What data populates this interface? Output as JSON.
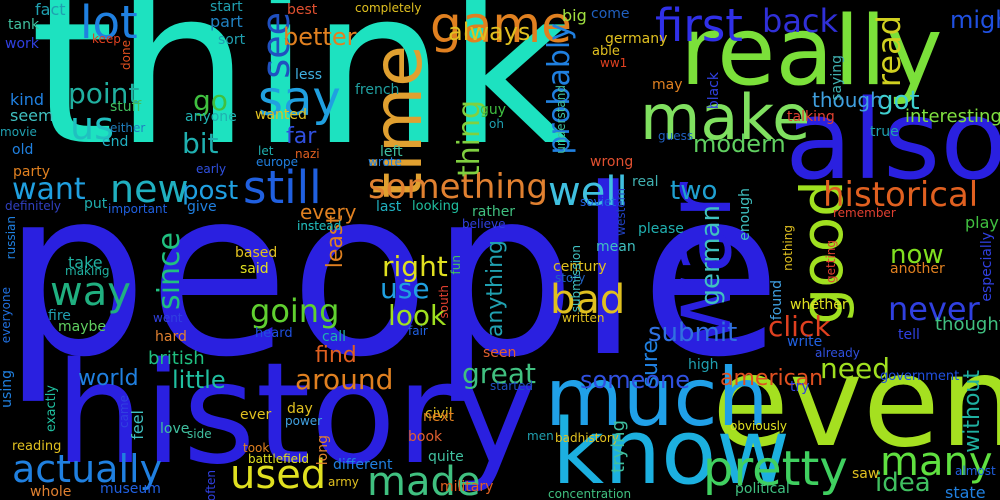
{
  "background": "#000000",
  "words": [
    {
      "text": "people",
      "color": "#2a20e0"
    },
    {
      "text": "think",
      "color": "#1de2c0"
    },
    {
      "text": "history",
      "color": "#2a20e0"
    },
    {
      "text": "really",
      "color": "#7be03a"
    },
    {
      "text": "also",
      "color": "#2a20e0"
    },
    {
      "text": "even",
      "color": "#a5e020"
    },
    {
      "text": "know",
      "color": "#1cb0e0"
    },
    {
      "text": "much",
      "color": "#20a0e8"
    },
    {
      "text": "war",
      "color": "#2a20e0"
    },
    {
      "text": "time",
      "color": "#e0a030"
    },
    {
      "text": "make",
      "color": "#80e060"
    },
    {
      "text": "game",
      "color": "#e08020"
    },
    {
      "text": "first",
      "color": "#3030e8"
    },
    {
      "text": "back",
      "color": "#3030d8"
    },
    {
      "text": "lot",
      "color": "#2080e0"
    },
    {
      "text": "us",
      "color": "#20c0c0"
    },
    {
      "text": "say",
      "color": "#20a0e0"
    },
    {
      "text": "see",
      "color": "#2050c0"
    },
    {
      "text": "still",
      "color": "#2060e0"
    },
    {
      "text": "new",
      "color": "#20b0c0"
    },
    {
      "text": "well",
      "color": "#40c0e0"
    },
    {
      "text": "good",
      "color": "#a0e020"
    },
    {
      "text": "pretty",
      "color": "#40d060"
    },
    {
      "text": "actually",
      "color": "#2080e0"
    },
    {
      "text": "used",
      "color": "#e0e020"
    },
    {
      "text": "made",
      "color": "#40c080"
    },
    {
      "text": "many",
      "color": "#60e040"
    },
    {
      "text": "way",
      "color": "#20b080"
    },
    {
      "text": "want",
      "color": "#20a0e0"
    },
    {
      "text": "something",
      "color": "#e08030"
    },
    {
      "text": "historical",
      "color": "#e06020"
    },
    {
      "text": "bad",
      "color": "#e0c020"
    },
    {
      "text": "going",
      "color": "#60d030"
    },
    {
      "text": "never",
      "color": "#3040e0"
    },
    {
      "text": "click",
      "color": "#e04020"
    },
    {
      "text": "around",
      "color": "#e08020"
    },
    {
      "text": "submit",
      "color": "#3070e0"
    },
    {
      "text": "little",
      "color": "#20c0a0"
    },
    {
      "text": "world",
      "color": "#2080e0"
    },
    {
      "text": "great",
      "color": "#40c080"
    },
    {
      "text": "someone",
      "color": "#3050e0"
    },
    {
      "text": "american",
      "color": "#e05020"
    },
    {
      "text": "need",
      "color": "#a0e020"
    },
    {
      "text": "idea",
      "color": "#40c060"
    },
    {
      "text": "point",
      "color": "#20b0a0"
    },
    {
      "text": "go",
      "color": "#40c040"
    },
    {
      "text": "bit",
      "color": "#20b0b0"
    },
    {
      "text": "post",
      "color": "#20a0e0"
    },
    {
      "text": "two",
      "color": "#20a0d0"
    },
    {
      "text": "got",
      "color": "#40d0d0"
    },
    {
      "text": "read",
      "color": "#d0d020"
    },
    {
      "text": "might",
      "color": "#2050e0"
    },
    {
      "text": "probably",
      "color": "#2080e0"
    },
    {
      "text": "thing",
      "color": "#80d040"
    },
    {
      "text": "better",
      "color": "#e08020"
    },
    {
      "text": "always",
      "color": "#e0c020"
    },
    {
      "text": "modern",
      "color": "#60d060"
    },
    {
      "text": "german",
      "color": "#40c0c0"
    },
    {
      "text": "since",
      "color": "#20c080"
    },
    {
      "text": "right",
      "color": "#e0e020"
    },
    {
      "text": "use",
      "color": "#20a0e0"
    },
    {
      "text": "look",
      "color": "#a0e020"
    },
    {
      "text": "least",
      "color": "#e08020"
    },
    {
      "text": "every",
      "color": "#e08020"
    },
    {
      "text": "find",
      "color": "#e06020"
    },
    {
      "text": "anything",
      "color": "#20a0b0"
    },
    {
      "text": "now",
      "color": "#80e020"
    },
    {
      "text": "though",
      "color": "#40a0e0"
    },
    {
      "text": "interesting",
      "color": "#80e040"
    },
    {
      "text": "far",
      "color": "#3050e0"
    },
    {
      "text": "thought",
      "color": "#40c080"
    },
    {
      "text": "without",
      "color": "#20b0a0"
    },
    {
      "text": "sure",
      "color": "#2080e0"
    },
    {
      "text": "british",
      "color": "#20c080"
    },
    {
      "text": "fact",
      "color": "#20a0b0"
    },
    {
      "text": "part",
      "color": "#2080c0"
    },
    {
      "text": "start",
      "color": "#20a0b0"
    },
    {
      "text": "best",
      "color": "#e05030"
    },
    {
      "text": "big",
      "color": "#a0e040"
    },
    {
      "text": "come",
      "color": "#2060c0"
    },
    {
      "text": "tank",
      "color": "#40c0a0"
    },
    {
      "text": "work",
      "color": "#3040e0"
    },
    {
      "text": "kind",
      "color": "#2080e0"
    },
    {
      "text": "seem",
      "color": "#40c0c0"
    },
    {
      "text": "movie",
      "color": "#20a0b0"
    },
    {
      "text": "old",
      "color": "#2080e0"
    },
    {
      "text": "party",
      "color": "#e08020"
    },
    {
      "text": "definitely",
      "color": "#3040c0"
    },
    {
      "text": "russian",
      "color": "#2080e0"
    },
    {
      "text": "everyone",
      "color": "#2070e0"
    },
    {
      "text": "using",
      "color": "#2080e0"
    },
    {
      "text": "reading",
      "color": "#e0c020"
    },
    {
      "text": "whole",
      "color": "#e08030"
    },
    {
      "text": "museum",
      "color": "#2060e0"
    },
    {
      "text": "exactly",
      "color": "#20c0a0"
    },
    {
      "text": "fire",
      "color": "#20a0b0"
    },
    {
      "text": "maybe",
      "color": "#60d060"
    },
    {
      "text": "making",
      "color": "#20b0a0"
    },
    {
      "text": "take",
      "color": "#20b0a0"
    },
    {
      "text": "keep",
      "color": "#e04020"
    },
    {
      "text": "done",
      "color": "#e05020"
    },
    {
      "text": "completely",
      "color": "#e0c020"
    },
    {
      "text": "sort",
      "color": "#20a0b0"
    },
    {
      "text": "less",
      "color": "#40b0e0"
    },
    {
      "text": "germany",
      "color": "#e0c020"
    },
    {
      "text": "able",
      "color": "#e0c020"
    },
    {
      "text": "ww1",
      "color": "#e04020"
    },
    {
      "text": "may",
      "color": "#e08020"
    },
    {
      "text": "black",
      "color": "#3040e0"
    },
    {
      "text": "saying",
      "color": "#40b0b0"
    },
    {
      "text": "guy",
      "color": "#40c040"
    },
    {
      "text": "oh",
      "color": "#20a0b0"
    },
    {
      "text": "french",
      "color": "#20a0a0"
    },
    {
      "text": "understand",
      "color": "#40c0a0"
    },
    {
      "text": "stuff",
      "color": "#40c060"
    },
    {
      "text": "either",
      "color": "#2080c0"
    },
    {
      "text": "end",
      "color": "#20b0c0"
    },
    {
      "text": "anyone",
      "color": "#20b0b0"
    },
    {
      "text": "wanted",
      "color": "#e0c020"
    },
    {
      "text": "nazi",
      "color": "#e06020"
    },
    {
      "text": "let",
      "color": "#20b0b0"
    },
    {
      "text": "europe",
      "color": "#2080e0"
    },
    {
      "text": "left",
      "color": "#40c0a0"
    },
    {
      "text": "wrote",
      "color": "#2080e0"
    },
    {
      "text": "wrong",
      "color": "#e05030"
    },
    {
      "text": "talking",
      "color": "#e04030"
    },
    {
      "text": "true",
      "color": "#20a0b0"
    },
    {
      "text": "guess",
      "color": "#2060c0"
    },
    {
      "text": "early",
      "color": "#3050e0"
    },
    {
      "text": "real",
      "color": "#40b0b0"
    },
    {
      "text": "soviet",
      "color": "#2060e0"
    },
    {
      "text": "western",
      "color": "#2040c0"
    },
    {
      "text": "enough",
      "color": "#40c0c0"
    },
    {
      "text": "remember",
      "color": "#e04030"
    },
    {
      "text": "put",
      "color": "#20b0b0"
    },
    {
      "text": "important",
      "color": "#2060e0"
    },
    {
      "text": "give",
      "color": "#2080e0"
    },
    {
      "text": "instead",
      "color": "#20b0b0"
    },
    {
      "text": "last",
      "color": "#20b0c0"
    },
    {
      "text": "looking",
      "color": "#20c0a0"
    },
    {
      "text": "rather",
      "color": "#40c080"
    },
    {
      "text": "believe",
      "color": "#3040e0"
    },
    {
      "text": "please",
      "color": "#20b0b0"
    },
    {
      "text": "nothing",
      "color": "#e0c020"
    },
    {
      "text": "getting",
      "color": "#e04030"
    },
    {
      "text": "play",
      "color": "#40c040"
    },
    {
      "text": "especially",
      "color": "#3040e0"
    },
    {
      "text": "another",
      "color": "#e08020"
    },
    {
      "text": "based",
      "color": "#e0c020"
    },
    {
      "text": "said",
      "color": "#e0e020"
    },
    {
      "text": "instead_2",
      "color": "#20b0b0"
    },
    {
      "text": "mean",
      "color": "#40c0c0"
    },
    {
      "text": "century",
      "color": "#e0c020"
    },
    {
      "text": "story",
      "color": "#2060c0"
    },
    {
      "text": "submission",
      "color": "#40c0c0"
    },
    {
      "text": "south",
      "color": "#e04030"
    },
    {
      "text": "fun",
      "color": "#40c060"
    },
    {
      "text": "written",
      "color": "#e0c020"
    },
    {
      "text": "found",
      "color": "#40a0e0"
    },
    {
      "text": "whether",
      "color": "#e0e020"
    },
    {
      "text": "write",
      "color": "#2060e0"
    },
    {
      "text": "tell",
      "color": "#3040e0"
    },
    {
      "text": "went",
      "color": "#3040e0"
    },
    {
      "text": "hard",
      "color": "#e08030"
    },
    {
      "text": "heard",
      "color": "#2050e0"
    },
    {
      "text": "call",
      "color": "#20b0b0"
    },
    {
      "text": "fair",
      "color": "#2060e0"
    },
    {
      "text": "seen",
      "color": "#e06030"
    },
    {
      "text": "already",
      "color": "#3050e0"
    },
    {
      "text": "government",
      "color": "#2050e0"
    },
    {
      "text": "state",
      "color": "#2080e0"
    },
    {
      "text": "almost",
      "color": "#2060e0"
    },
    {
      "text": "high",
      "color": "#20a0b0"
    },
    {
      "text": "try",
      "color": "#3040e0"
    },
    {
      "text": "obviously",
      "color": "#e0e020"
    },
    {
      "text": "started",
      "color": "#2050c0"
    },
    {
      "text": "civil",
      "color": "#e0c020"
    },
    {
      "text": "next",
      "color": "#e08020"
    },
    {
      "text": "book",
      "color": "#e06030"
    },
    {
      "text": "quite",
      "color": "#40c0a0"
    },
    {
      "text": "men",
      "color": "#20a0b0"
    },
    {
      "text": "badhistory",
      "color": "#e0c020"
    },
    {
      "text": "power",
      "color": "#40a0e0"
    },
    {
      "text": "day",
      "color": "#e0c020"
    },
    {
      "text": "ever",
      "color": "#e0c020"
    },
    {
      "text": "took",
      "color": "#e08020"
    },
    {
      "text": "love",
      "color": "#40c0a0"
    },
    {
      "text": "side",
      "color": "#40c0a0"
    },
    {
      "text": "battlefield",
      "color": "#e0e020"
    },
    {
      "text": "came",
      "color": "#3040e0"
    },
    {
      "text": "feel",
      "color": "#40c0c0"
    },
    {
      "text": "often",
      "color": "#3040e0"
    },
    {
      "text": "different",
      "color": "#2080e0"
    },
    {
      "text": "army",
      "color": "#e0c020"
    },
    {
      "text": "long",
      "color": "#e08030"
    },
    {
      "text": "military",
      "color": "#e06020"
    },
    {
      "text": "trying",
      "color": "#40c0a0"
    },
    {
      "text": "concentration",
      "color": "#40c080"
    },
    {
      "text": "political",
      "color": "#40c080"
    },
    {
      "text": "saw",
      "color": "#e0c020"
    }
  ]
}
